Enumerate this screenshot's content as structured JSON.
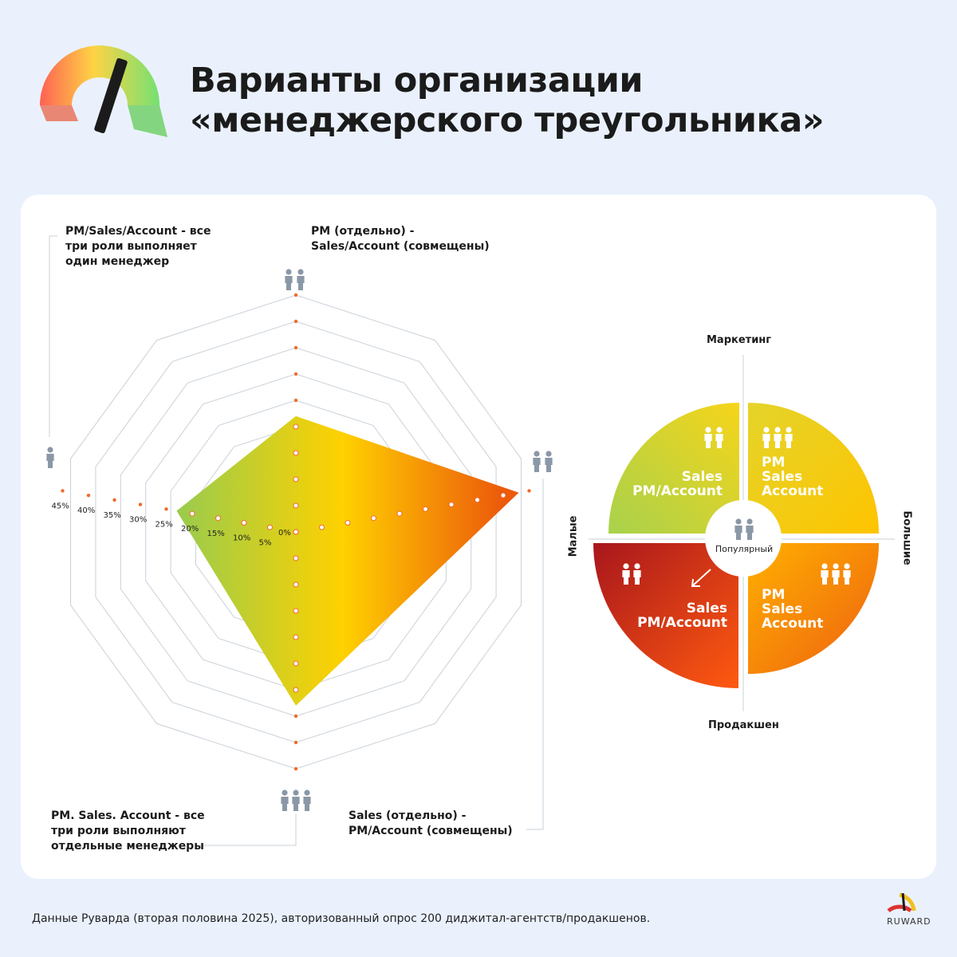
{
  "header": {
    "title_line1": "Варианты организации",
    "title_line2": "«менеджерского треугольника»"
  },
  "radar": {
    "labels": {
      "top_line1": "PM (отдельно) -",
      "top_line2": "Sales/Account (совмещены)",
      "left_line1": "PM/Sales/Account - все",
      "left_line2": "три роли выполняет",
      "left_line3": "один менеджер",
      "bottom_left_line1": "PM. Sales. Account - все",
      "bottom_left_line2": "три роли выполняют",
      "bottom_left_line3": "отдельные менеджеры",
      "bottom_right_line1": "Sales (отдельно) -",
      "bottom_right_line2": "PM/Account (совмещены)"
    },
    "scale_labels": [
      "0%",
      "5%",
      "10%",
      "15%",
      "20%",
      "25%",
      "30%",
      "35%",
      "40%",
      "45%"
    ]
  },
  "chart_data": {
    "type": "radar",
    "axes": [
      "PM (отдельно) - Sales/Account (совмещены)",
      "Sales (отдельно) - PM/Account (совмещены)",
      "PM. Sales. Account - все три роли выполняют отдельные менеджеры",
      "PM/Sales/Account - все три роли выполняет один менеджер"
    ],
    "values": [
      22,
      43,
      33,
      23
    ],
    "unit": "%",
    "ylim": [
      0,
      45
    ],
    "ticks": [
      0,
      5,
      10,
      15,
      20,
      25,
      30,
      35,
      40,
      45
    ],
    "grid": true
  },
  "quadrant": {
    "axis_top": "Маркетинг",
    "axis_bottom": "Продакшен",
    "axis_left": "Малые",
    "axis_right": "Большие",
    "center_label": "Популярный",
    "tl": {
      "line1": "Sales",
      "line2": "PM/Account"
    },
    "tr": {
      "line1": "PM",
      "line2": "Sales",
      "line3": "Account"
    },
    "bl": {
      "line1": "Sales",
      "line2": "PM/Account"
    },
    "br": {
      "line1": "PM",
      "line2": "Sales",
      "line3": "Account"
    }
  },
  "footer": {
    "source": "Данные Руварда (вторая половина 2025), авторизованный опрос 200 диджитал-агентств/продакшенов.",
    "brand": "RUWARD"
  },
  "colors": {
    "accent": "#f06a2a",
    "green": "#9ccc4a",
    "yellow": "#ffd100",
    "orange": "#f07a10",
    "red": "#b51a1a",
    "icon": "#8a97a6"
  }
}
